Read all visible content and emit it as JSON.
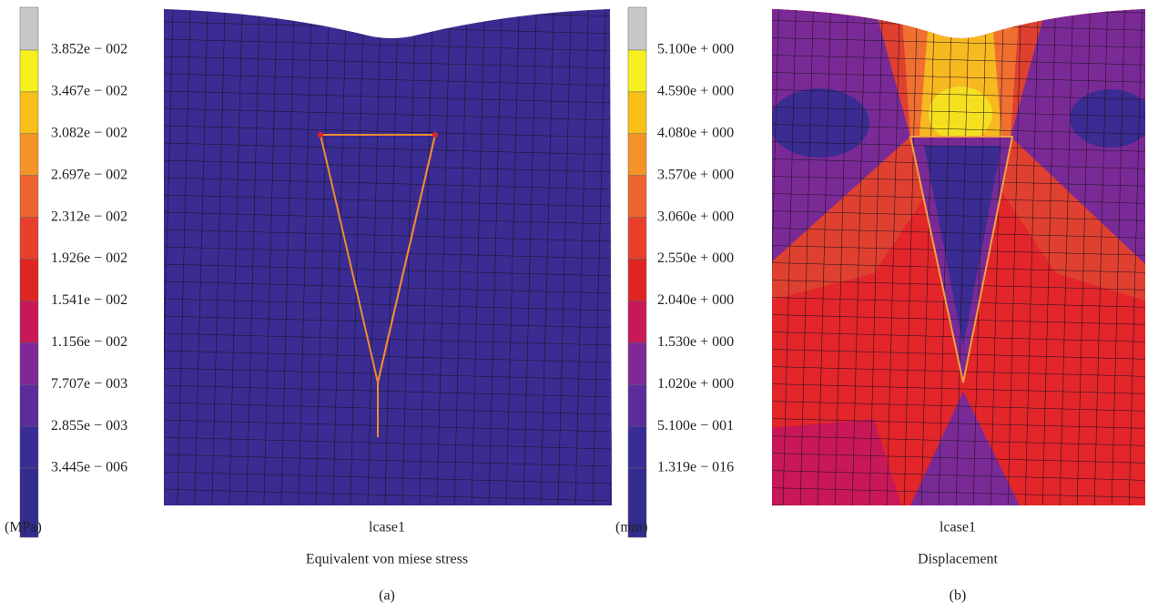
{
  "panels": [
    {
      "legend": [
        "3.852e − 002",
        "3.467e − 002",
        "3.082e − 002",
        "2.697e − 002",
        "2.312e − 002",
        "1.926e − 002",
        "1.541e − 002",
        "1.156e − 002",
        "7.707e − 003",
        "2.855e − 003",
        "3.445e − 006"
      ],
      "unit": "(MPa)",
      "case": "lcase1",
      "caption": "Equivalent von miese stress",
      "label": "(a)"
    },
    {
      "legend": [
        "5.100e + 000",
        "4.590e + 000",
        "4.080e + 000",
        "3.570e + 000",
        "3.060e + 000",
        "2.550e + 000",
        "2.040e + 000",
        "1.530e + 000",
        "1.020e + 000",
        "5.100e − 001",
        "1.319e − 016"
      ],
      "unit": "(mm)",
      "case": "lcase1",
      "caption": "Displacement",
      "label": "(b)"
    }
  ]
}
